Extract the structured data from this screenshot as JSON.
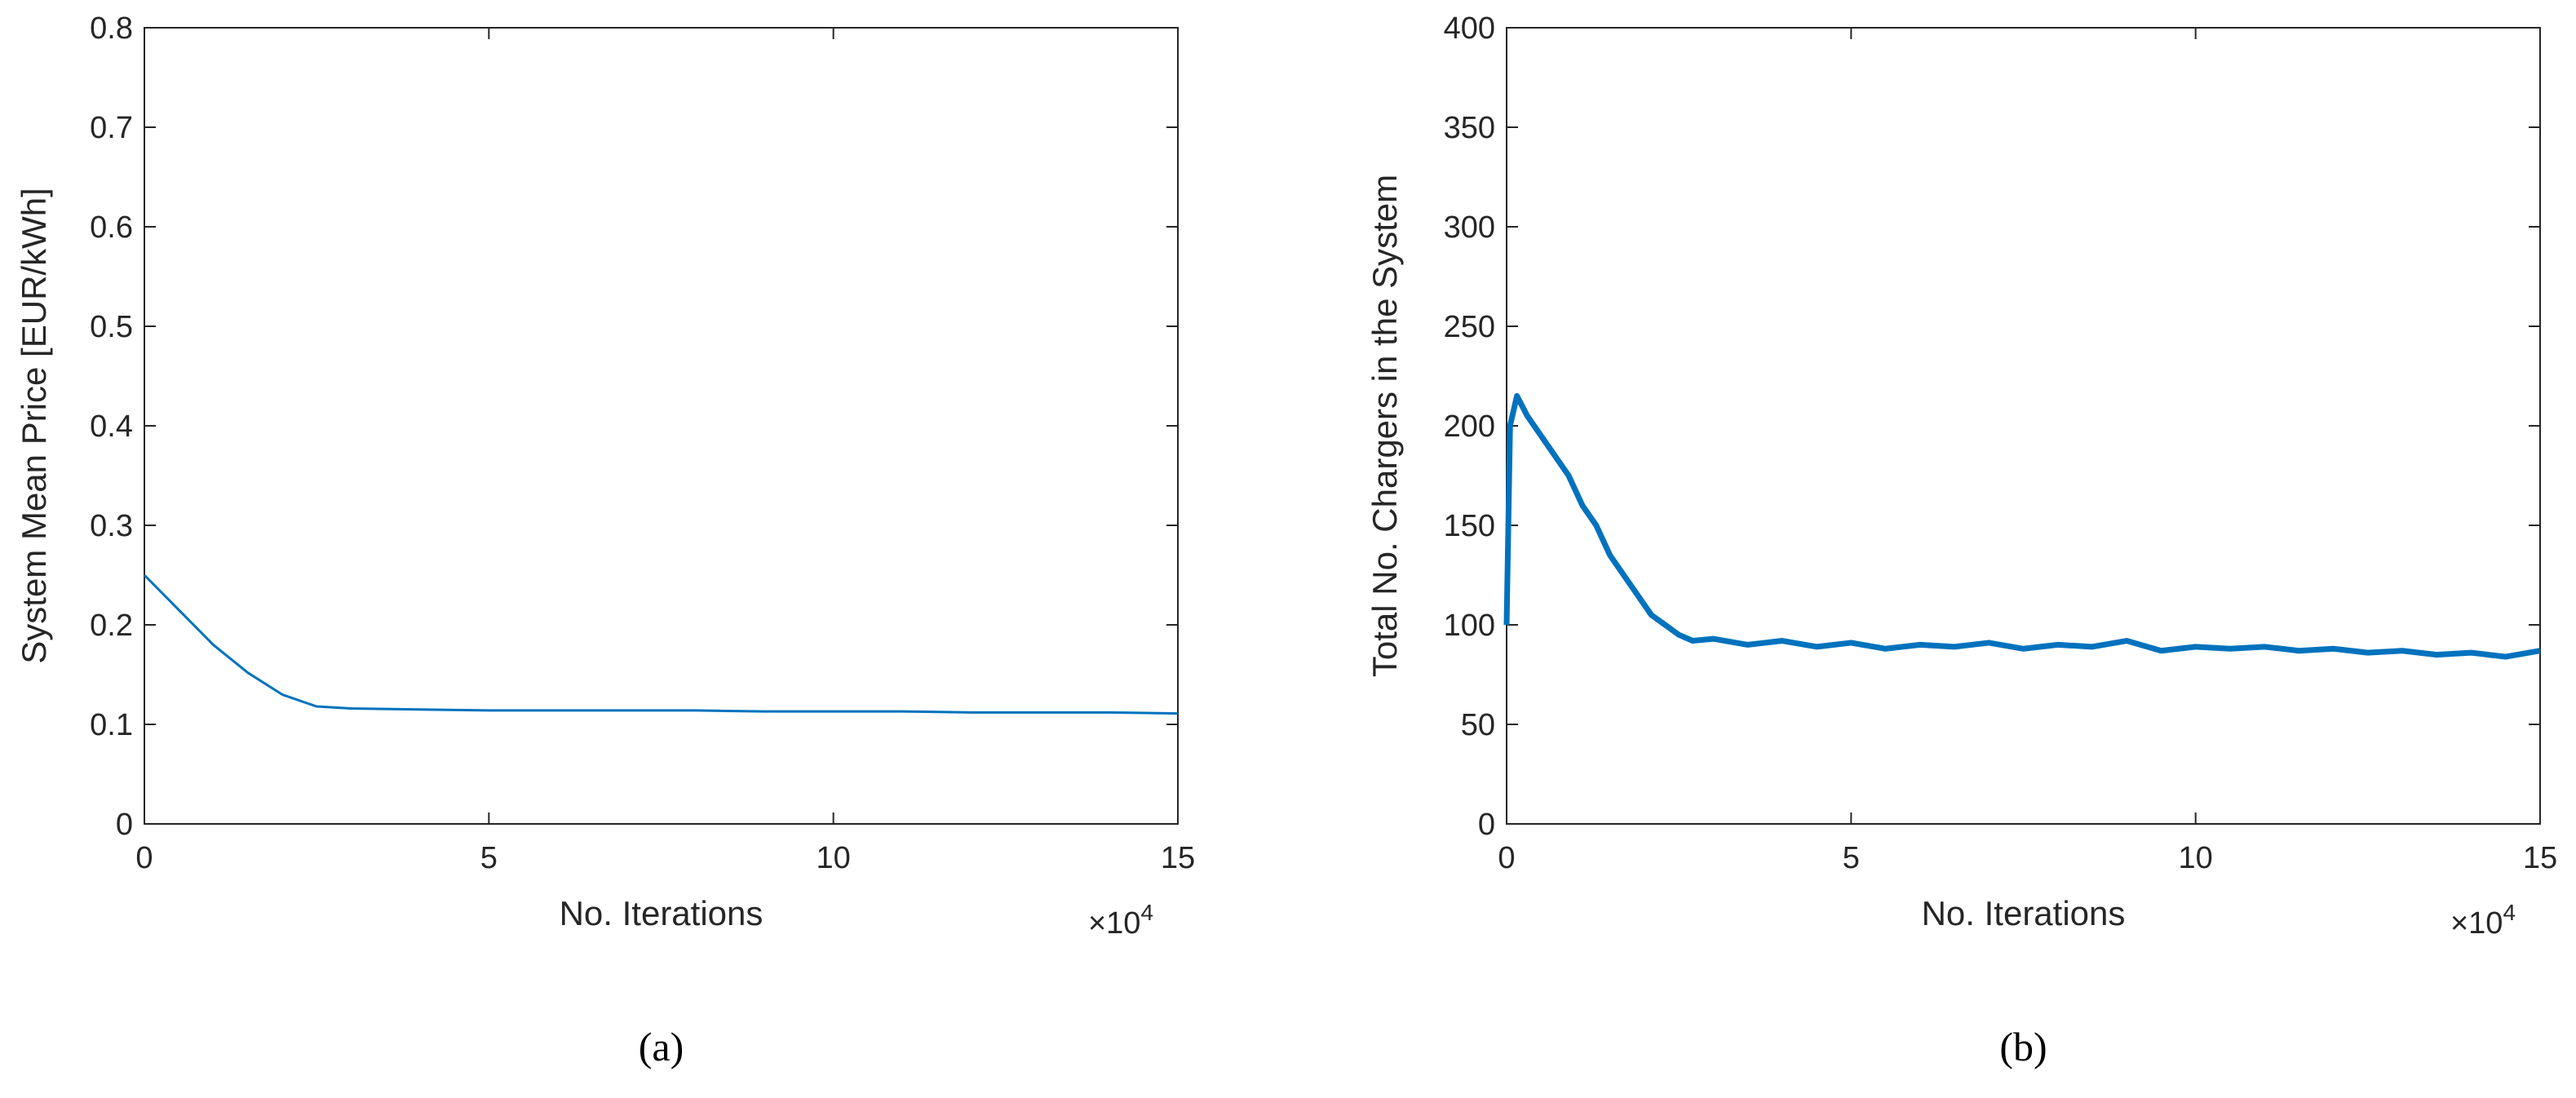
{
  "chart_data": [
    {
      "type": "line",
      "caption": "(a)",
      "x_label": "No. Iterations",
      "y_label": "System Mean Price [EUR/kWh]",
      "x_multiplier": "×10",
      "x_multiplier_exponent": "4",
      "x": [
        0,
        0.5,
        1,
        1.5,
        2,
        2.5,
        3,
        4,
        5,
        6,
        7,
        8,
        9,
        10,
        11,
        12,
        13,
        14,
        15
      ],
      "series": [
        {
          "name": "System Mean Price",
          "color": "#0072bd",
          "values": [
            0.25,
            0.215,
            0.18,
            0.152,
            0.13,
            0.118,
            0.116,
            0.115,
            0.114,
            0.114,
            0.114,
            0.114,
            0.113,
            0.113,
            0.113,
            0.112,
            0.112,
            0.112,
            0.111
          ]
        }
      ],
      "xlim": [
        0,
        15
      ],
      "xticks": [
        0,
        5,
        10,
        15
      ],
      "ylim": [
        0,
        0.8
      ],
      "yticks": [
        0,
        0.1,
        0.2,
        0.3,
        0.4,
        0.5,
        0.6,
        0.7,
        0.8
      ]
    },
    {
      "type": "line",
      "caption": "(b)",
      "x_label": "No. Iterations",
      "y_label": "Total No. Chargers in the System",
      "x_multiplier": "×10",
      "x_multiplier_exponent": "4",
      "x": [
        0,
        0.05,
        0.15,
        0.3,
        0.5,
        0.7,
        0.9,
        1.1,
        1.3,
        1.5,
        1.7,
        1.9,
        2.1,
        2.3,
        2.5,
        2.7,
        3,
        3.5,
        4,
        4.5,
        5,
        5.5,
        6,
        6.5,
        7,
        7.5,
        8,
        8.5,
        9,
        9.5,
        10,
        10.5,
        11,
        11.5,
        12,
        12.5,
        13,
        13.5,
        14,
        14.5,
        15
      ],
      "series": [
        {
          "name": "Total No. Chargers",
          "color": "#0072bd",
          "values": [
            100,
            200,
            215,
            205,
            195,
            185,
            175,
            160,
            150,
            135,
            125,
            115,
            105,
            100,
            95,
            92,
            93,
            90,
            92,
            89,
            91,
            88,
            90,
            89,
            91,
            88,
            90,
            89,
            92,
            87,
            89,
            88,
            89,
            87,
            88,
            86,
            87,
            85,
            86,
            84,
            87
          ]
        }
      ],
      "xlim": [
        0,
        15
      ],
      "xticks": [
        0,
        5,
        10,
        15
      ],
      "ylim": [
        0,
        400
      ],
      "yticks": [
        0,
        50,
        100,
        150,
        200,
        250,
        300,
        350,
        400
      ]
    }
  ]
}
